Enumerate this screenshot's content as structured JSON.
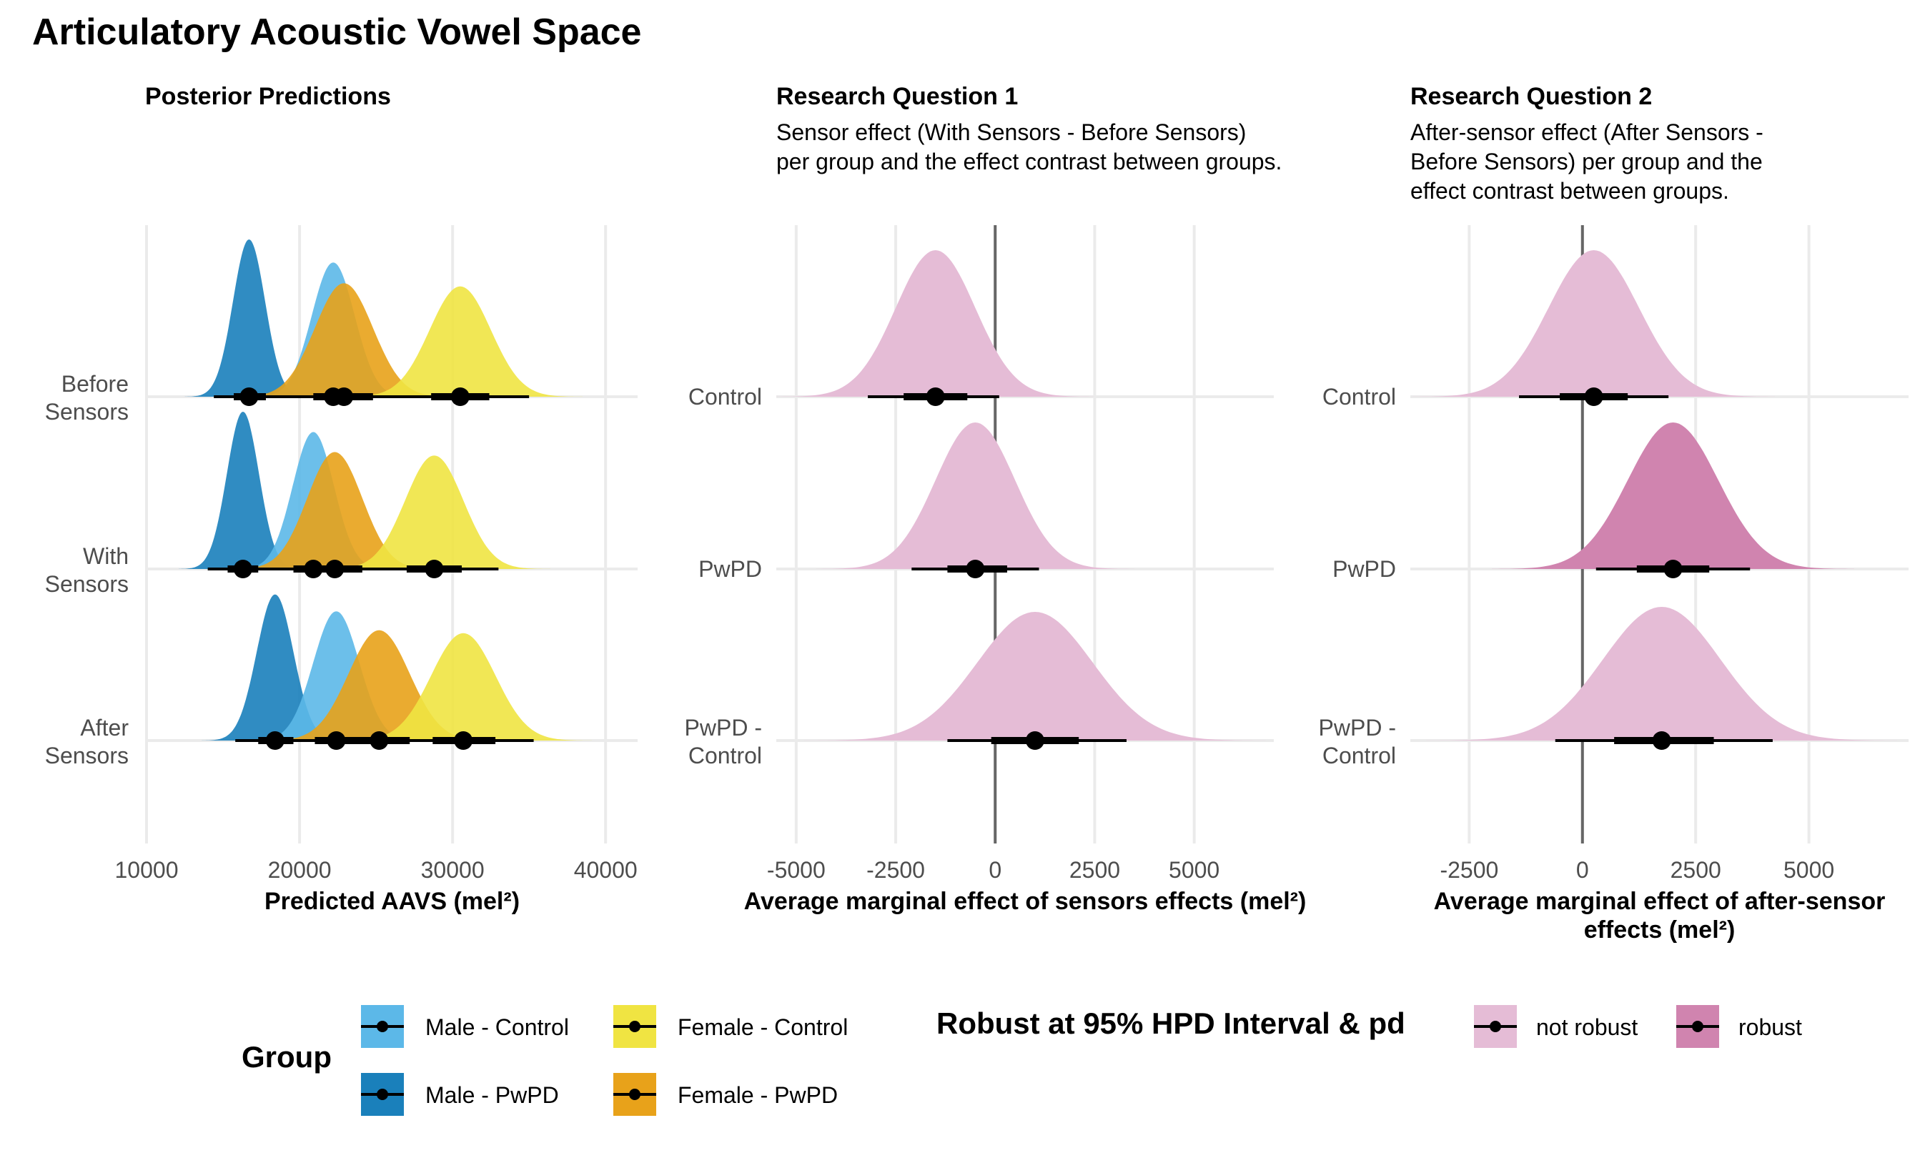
{
  "title": "Articulatory Acoustic Vowel Space",
  "chart_data": [
    {
      "type": "density_ridges",
      "title": "Posterior Predictions",
      "subtitle": "",
      "xlabel": "Predicted AAVS (mel²)",
      "ylabel": "",
      "xlim": [
        10000,
        42000
      ],
      "xticks": [
        10000,
        20000,
        30000,
        40000
      ],
      "tick_labels": [
        "10000",
        "20000",
        "30000",
        "40000"
      ],
      "categories": [
        "Before Sensors",
        "With Sensors",
        "After Sensors"
      ],
      "category_labels": [
        [
          "Before",
          "Sensors"
        ],
        [
          "With",
          "Sensors"
        ],
        [
          "After",
          "Sensors"
        ]
      ],
      "series": [
        {
          "name": "Male - PwPD",
          "color": "#1a80bb",
          "points": [
            {
              "category": "Before Sensors",
              "median": 16700,
              "sd": 1050,
              "q66": [
                15700,
                17800
              ],
              "q95": [
                14400,
                19200
              ]
            },
            {
              "category": "With Sensors",
              "median": 16300,
              "sd": 1050,
              "q66": [
                15300,
                17300
              ],
              "q95": [
                14000,
                18700
              ]
            },
            {
              "category": "After Sensors",
              "median": 18400,
              "sd": 1200,
              "q66": [
                17300,
                19600
              ],
              "q95": [
                15800,
                21000
              ]
            }
          ]
        },
        {
          "name": "Male - Control",
          "color": "#5cb8e8",
          "points": [
            {
              "category": "Before Sensors",
              "median": 22200,
              "sd": 1400,
              "q66": [
                20900,
                23600
              ],
              "q95": [
                19200,
                25300
              ]
            },
            {
              "category": "With Sensors",
              "median": 20900,
              "sd": 1350,
              "q66": [
                19600,
                22200
              ],
              "q95": [
                18000,
                23800
              ]
            },
            {
              "category": "After Sensors",
              "median": 22400,
              "sd": 1500,
              "q66": [
                21000,
                23900
              ],
              "q95": [
                19200,
                25600
              ]
            }
          ]
        },
        {
          "name": "Female - PwPD",
          "color": "#e8a21a",
          "points": [
            {
              "category": "Before Sensors",
              "median": 22900,
              "sd": 1900,
              "q66": [
                21100,
                24800
              ],
              "q95": [
                19100,
                27000
              ]
            },
            {
              "category": "With Sensors",
              "median": 22300,
              "sd": 1800,
              "q66": [
                20600,
                24100
              ],
              "q95": [
                18700,
                26200
              ]
            },
            {
              "category": "After Sensors",
              "median": 25200,
              "sd": 2000,
              "q66": [
                23300,
                27200
              ],
              "q95": [
                21200,
                29500
              ]
            }
          ]
        },
        {
          "name": "Female - Control",
          "color": "#f0e442",
          "points": [
            {
              "category": "Before Sensors",
              "median": 30500,
              "sd": 2000,
              "q66": [
                28600,
                32400
              ],
              "q95": [
                26600,
                35000
              ]
            },
            {
              "category": "With Sensors",
              "median": 28800,
              "sd": 1900,
              "q66": [
                27000,
                30600
              ],
              "q95": [
                25000,
                33000
              ]
            },
            {
              "category": "After Sensors",
              "median": 30700,
              "sd": 2100,
              "q66": [
                28700,
                32800
              ],
              "q95": [
                26600,
                35300
              ]
            }
          ]
        }
      ]
    },
    {
      "type": "density_ridges",
      "title": "Research Question 1",
      "subtitle": [
        "Sensor effect (With Sensors - Before Sensors)",
        "per group and the effect contrast between groups."
      ],
      "xlabel": "Average marginal effect of sensors effects (mel²)",
      "xlim": [
        -5500,
        7000
      ],
      "xticks": [
        -5000,
        -2500,
        0,
        2500,
        5000
      ],
      "tick_labels": [
        "-5000",
        "-2500",
        "0",
        "2500",
        "5000"
      ],
      "categories": [
        "Control",
        "PwPD",
        "PwPD - Control"
      ],
      "category_labels": [
        [
          "Control"
        ],
        [
          "PwPD"
        ],
        [
          "PwPD -",
          "Control"
        ]
      ],
      "points": [
        {
          "category": "Control",
          "median": -1500,
          "sd": 1000,
          "q66": [
            -2300,
            -700
          ],
          "q95": [
            -3200,
            100
          ],
          "robust": "not robust"
        },
        {
          "category": "PwPD",
          "median": -500,
          "sd": 1000,
          "q66": [
            -1200,
            300
          ],
          "q95": [
            -2100,
            1100
          ],
          "robust": "not robust"
        },
        {
          "category": "PwPD - Control",
          "median": 1000,
          "sd": 1450,
          "q66": [
            -100,
            2100
          ],
          "q95": [
            -1200,
            3300
          ],
          "robust": "not robust"
        }
      ]
    },
    {
      "type": "density_ridges",
      "title": "Research Question 2",
      "subtitle": [
        "After-sensor effect (After Sensors -",
        "Before Sensors) per group and the",
        "effect contrast between groups."
      ],
      "xlabel": [
        "Average marginal effect of after-sensor",
        "effects (mel²)"
      ],
      "xlim": [
        -3800,
        7200
      ],
      "xticks": [
        -2500,
        0,
        2500,
        5000
      ],
      "tick_labels": [
        "-2500",
        "0",
        "2500",
        "5000"
      ],
      "categories": [
        "Control",
        "PwPD",
        "PwPD - Control"
      ],
      "category_labels": [
        [
          "Control"
        ],
        [
          "PwPD"
        ],
        [
          "PwPD -",
          "Control"
        ]
      ],
      "points": [
        {
          "category": "Control",
          "median": 250,
          "sd": 1000,
          "q66": [
            -500,
            1000
          ],
          "q95": [
            -1400,
            1900
          ],
          "robust": "not robust"
        },
        {
          "category": "PwPD",
          "median": 2000,
          "sd": 1000,
          "q66": [
            1200,
            2800
          ],
          "q95": [
            300,
            3700
          ],
          "robust": "robust"
        },
        {
          "category": "PwPD - Control",
          "median": 1750,
          "sd": 1300,
          "q66": [
            700,
            2900
          ],
          "q95": [
            -600,
            4200
          ],
          "robust": "not robust"
        }
      ]
    }
  ],
  "legend": {
    "group_title": "Group",
    "group_items": [
      {
        "label": "Male - Control",
        "color": "#5cb8e8"
      },
      {
        "label": "Male - PwPD",
        "color": "#1a80bb"
      },
      {
        "label": "Female - Control",
        "color": "#f0e442"
      },
      {
        "label": "Female - PwPD",
        "color": "#e8a21a"
      }
    ],
    "robust_title": "Robust at 95% HPD Interval & pd",
    "robust_items": [
      {
        "label": "not robust",
        "color": "#e5bcd6"
      },
      {
        "label": "robust",
        "color": "#d084af"
      }
    ]
  }
}
